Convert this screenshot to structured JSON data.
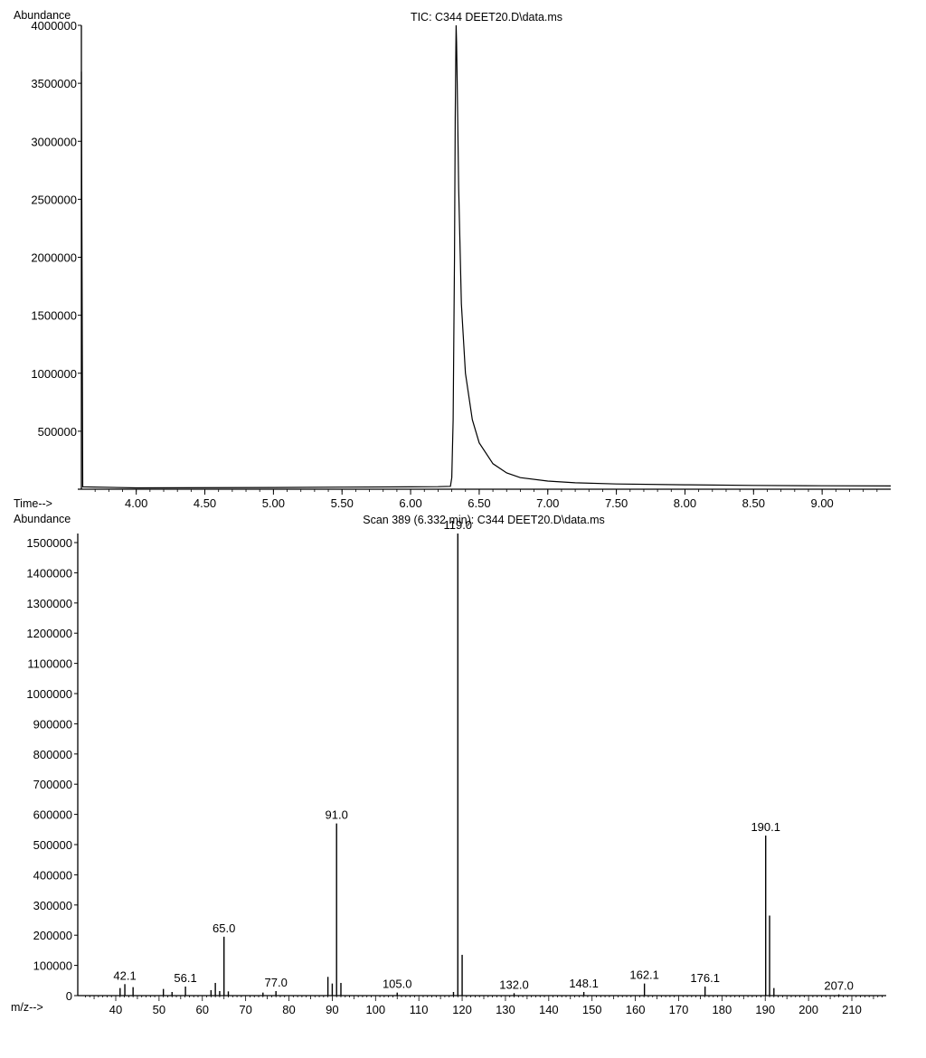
{
  "chart_data": [
    {
      "type": "line",
      "title": "TIC: C344 DEET20.D\\data.ms",
      "ylabel": "Abundance",
      "xlabel": "Time-->",
      "xlim": [
        3.6,
        9.5
      ],
      "ylim": [
        0,
        4000000
      ],
      "x_ticks": [
        4.0,
        4.5,
        5.0,
        5.5,
        6.0,
        6.5,
        7.0,
        7.5,
        8.0,
        8.5,
        9.0
      ],
      "x_tick_labels": [
        "4.00",
        "4.50",
        "5.00",
        "5.50",
        "6.00",
        "6.50",
        "7.00",
        "7.50",
        "8.00",
        "8.50",
        "9.00"
      ],
      "y_ticks": [
        500000,
        1000000,
        1500000,
        2000000,
        2500000,
        3000000,
        3500000,
        4000000
      ],
      "y_tick_labels": [
        "500000",
        "1000000",
        "1500000",
        "2000000",
        "2500000",
        "3000000",
        "3500000",
        "4000000"
      ],
      "grid": false,
      "series": [
        {
          "x": [
            3.6,
            3.61,
            4.0,
            5.0,
            5.5,
            6.0,
            6.2,
            6.29,
            6.3,
            6.31,
            6.32,
            6.325,
            6.33,
            6.332,
            6.335,
            6.34,
            6.35,
            6.37,
            6.4,
            6.45,
            6.5,
            6.6,
            6.7,
            6.8,
            7.0,
            7.2,
            7.5,
            8.0,
            8.5,
            9.0,
            9.5
          ],
          "y": [
            3600000,
            20000,
            12000,
            15000,
            18000,
            20000,
            22000,
            25000,
            100000,
            600000,
            2000000,
            3200000,
            3800000,
            4000000,
            3850000,
            3500000,
            2600000,
            1600000,
            1000000,
            600000,
            400000,
            220000,
            140000,
            100000,
            70000,
            55000,
            45000,
            38000,
            33000,
            30000,
            28000
          ]
        }
      ]
    },
    {
      "type": "bar",
      "title": "Scan 389 (6.332 min): C344 DEET20.D\\data.ms",
      "ylabel": "Abundance",
      "xlabel": "m/z-->",
      "xlim": [
        32,
        220
      ],
      "ylim": [
        0,
        1530000
      ],
      "x_ticks": [
        40,
        50,
        60,
        70,
        80,
        90,
        100,
        110,
        120,
        130,
        140,
        150,
        160,
        170,
        180,
        190,
        200,
        210
      ],
      "x_tick_labels": [
        "40",
        "50",
        "60",
        "70",
        "80",
        "90",
        "100",
        "110",
        "120",
        "130",
        "140",
        "150",
        "160",
        "170",
        "180",
        "190",
        "200",
        "210"
      ],
      "y_ticks": [
        0,
        100000,
        200000,
        300000,
        400000,
        500000,
        600000,
        700000,
        800000,
        900000,
        1000000,
        1100000,
        1200000,
        1300000,
        1400000,
        1500000
      ],
      "y_tick_labels": [
        "0",
        "100000",
        "200000",
        "300000",
        "400000",
        "500000",
        "600000",
        "700000",
        "800000",
        "900000",
        "1000000",
        "1100000",
        "1200000",
        "1300000",
        "1400000",
        "1500000"
      ],
      "grid": false,
      "peaks": [
        {
          "mz": 41.0,
          "abundance": 25000
        },
        {
          "mz": 42.1,
          "abundance": 38000,
          "label": "42.1"
        },
        {
          "mz": 44.0,
          "abundance": 28000
        },
        {
          "mz": 51.0,
          "abundance": 22000
        },
        {
          "mz": 53.0,
          "abundance": 12000
        },
        {
          "mz": 56.1,
          "abundance": 30000,
          "label": "56.1"
        },
        {
          "mz": 62.0,
          "abundance": 18000
        },
        {
          "mz": 63.0,
          "abundance": 42000
        },
        {
          "mz": 64.0,
          "abundance": 15000
        },
        {
          "mz": 65.0,
          "abundance": 195000,
          "label": "65.0"
        },
        {
          "mz": 66.0,
          "abundance": 14000
        },
        {
          "mz": 74.0,
          "abundance": 10000
        },
        {
          "mz": 77.0,
          "abundance": 15000,
          "label": "77.0"
        },
        {
          "mz": 89.0,
          "abundance": 62000
        },
        {
          "mz": 90.0,
          "abundance": 40000
        },
        {
          "mz": 91.0,
          "abundance": 570000,
          "label": "91.0"
        },
        {
          "mz": 92.0,
          "abundance": 42000
        },
        {
          "mz": 105.0,
          "abundance": 10000,
          "label": "105.0"
        },
        {
          "mz": 118.0,
          "abundance": 12000
        },
        {
          "mz": 119.0,
          "abundance": 1530000,
          "label": "119.0"
        },
        {
          "mz": 120.0,
          "abundance": 135000
        },
        {
          "mz": 132.0,
          "abundance": 8000,
          "label": "132.0"
        },
        {
          "mz": 148.1,
          "abundance": 12000,
          "label": "148.1"
        },
        {
          "mz": 162.1,
          "abundance": 40000,
          "label": "162.1"
        },
        {
          "mz": 176.1,
          "abundance": 30000,
          "label": "176.1"
        },
        {
          "mz": 190.1,
          "abundance": 530000,
          "label": "190.1"
        },
        {
          "mz": 191.0,
          "abundance": 265000
        },
        {
          "mz": 192.0,
          "abundance": 25000
        },
        {
          "mz": 207.0,
          "abundance": 4000,
          "label": "207.0"
        }
      ]
    }
  ]
}
